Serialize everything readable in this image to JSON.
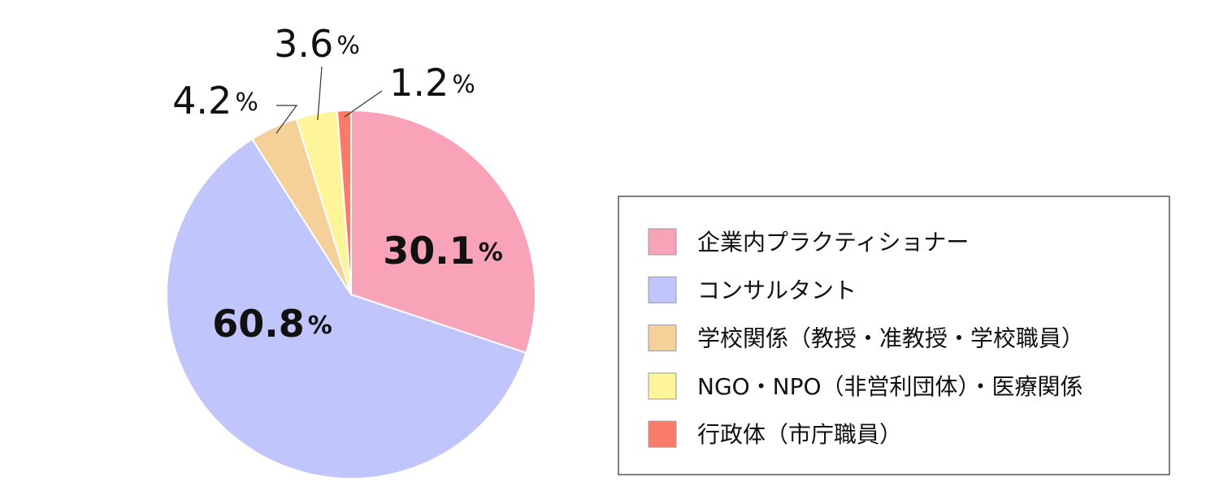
{
  "chart_data": {
    "type": "pie",
    "categories": [
      "企業内プラクティショナー",
      "コンサルタント",
      "学校関係（教授・准教授・学校職員）",
      "NGO・NPO（非営利団体）・医療関係",
      "行政体（市庁職員）"
    ],
    "values": [
      30.1,
      60.8,
      4.2,
      3.6,
      1.2
    ],
    "value_labels": [
      "30.1%",
      "60.8%",
      "4.2%",
      "3.6%",
      "1.2%"
    ],
    "colors": [
      "#f9a3b8",
      "#c0c6fb",
      "#f5d199",
      "#fef59a",
      "#fb7b6a"
    ],
    "legend": "right"
  }
}
